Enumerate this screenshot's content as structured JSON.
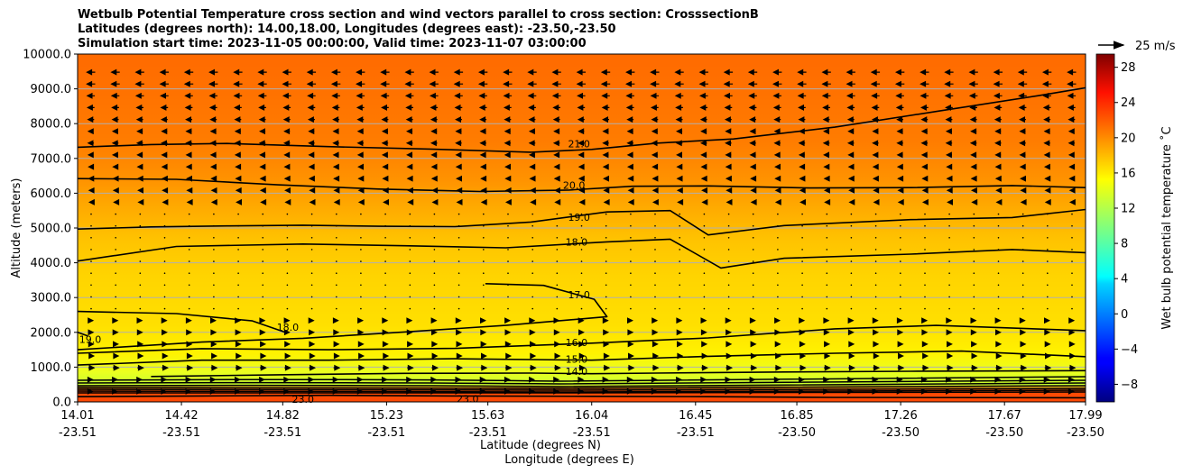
{
  "chart_data": {
    "type": "heatmap",
    "title_lines": [
      "Wetbulb Potential Temperature cross section and wind vectors parallel to cross section: CrosssectionB",
      "Latitudes (degrees north): 14.00,18.00, Longitudes (degrees east): -23.50,-23.50",
      "Simulation start time: 2023-11-05 00:00:00, Valid time: 2023-11-07 03:00:00"
    ],
    "ylabel": "Altitude (meters)",
    "xlabel": "Latitude (degrees N)",
    "xlabel2": "Longitude (degrees E)",
    "ylim": [
      0,
      10000
    ],
    "yticks": [
      "0.0",
      "1000.0",
      "2000.0",
      "3000.0",
      "4000.0",
      "5000.0",
      "6000.0",
      "7000.0",
      "8000.0",
      "9000.0",
      "10000.0"
    ],
    "xlim": [
      14.01,
      17.99
    ],
    "xticks": [
      {
        "lat": "14.01",
        "lon": "-23.51"
      },
      {
        "lat": "14.42",
        "lon": "-23.51"
      },
      {
        "lat": "14.82",
        "lon": "-23.51"
      },
      {
        "lat": "15.23",
        "lon": "-23.51"
      },
      {
        "lat": "15.63",
        "lon": "-23.51"
      },
      {
        "lat": "16.04",
        "lon": "-23.51"
      },
      {
        "lat": "16.45",
        "lon": "-23.51"
      },
      {
        "lat": "16.85",
        "lon": "-23.50"
      },
      {
        "lat": "17.26",
        "lon": "-23.50"
      },
      {
        "lat": "17.67",
        "lon": "-23.50"
      },
      {
        "lat": "17.99",
        "lon": "-23.50"
      }
    ],
    "grid": "horizontal",
    "colorbar": {
      "label": "Wet bulb potential temperature $^\\circ$C",
      "label_text": "Wet bulb potential temperature ˚C",
      "range": [
        -10,
        29.5
      ],
      "ticks": [
        "28",
        "24",
        "20",
        "16",
        "12",
        "8",
        "4",
        "0",
        "−4",
        "−8"
      ],
      "tick_values": [
        28,
        24,
        20,
        16,
        12,
        8,
        4,
        0,
        -4,
        -8
      ],
      "colormap": "jet"
    },
    "quiver_key": "25 m/s",
    "contours": [
      {
        "level": "21.0",
        "points": [
          [
            14.01,
            7320
          ],
          [
            14.3,
            7400
          ],
          [
            14.6,
            7430
          ],
          [
            15.0,
            7340
          ],
          [
            15.4,
            7270
          ],
          [
            15.8,
            7180
          ],
          [
            16.04,
            7260
          ],
          [
            16.3,
            7440
          ],
          [
            16.6,
            7560
          ],
          [
            17.0,
            7900
          ],
          [
            17.4,
            8350
          ],
          [
            17.8,
            8800
          ],
          [
            17.99,
            9030
          ]
        ],
        "labels": [
          [
            15.99,
            7400
          ]
        ]
      },
      {
        "level": "20.0",
        "points": [
          [
            14.01,
            6420
          ],
          [
            14.4,
            6400
          ],
          [
            14.8,
            6240
          ],
          [
            15.2,
            6120
          ],
          [
            15.6,
            6050
          ],
          [
            15.95,
            6090
          ],
          [
            16.2,
            6200
          ],
          [
            16.5,
            6210
          ],
          [
            16.9,
            6150
          ],
          [
            17.3,
            6160
          ],
          [
            17.7,
            6220
          ],
          [
            17.99,
            6160
          ]
        ],
        "labels": [
          [
            15.97,
            6200
          ]
        ]
      },
      {
        "level": "19.0",
        "points": [
          [
            14.01,
            4970
          ],
          [
            14.3,
            5030
          ],
          [
            14.6,
            5060
          ],
          [
            14.9,
            5080
          ],
          [
            15.2,
            5050
          ],
          [
            15.5,
            5040
          ],
          [
            15.8,
            5170
          ],
          [
            16.1,
            5460
          ],
          [
            16.35,
            5500
          ],
          [
            16.5,
            4800
          ],
          [
            16.8,
            5070
          ],
          [
            17.3,
            5240
          ],
          [
            17.7,
            5300
          ],
          [
            17.99,
            5530
          ]
        ],
        "labels": [
          [
            15.99,
            5290
          ]
        ]
      },
      {
        "level": "18.0",
        "points": [
          [
            14.01,
            4050
          ],
          [
            14.4,
            4470
          ],
          [
            14.9,
            4540
          ],
          [
            15.3,
            4490
          ],
          [
            15.7,
            4430
          ],
          [
            16.1,
            4600
          ],
          [
            16.35,
            4680
          ],
          [
            16.55,
            3850
          ],
          [
            16.8,
            4130
          ],
          [
            17.3,
            4250
          ],
          [
            17.7,
            4380
          ],
          [
            17.99,
            4290
          ]
        ],
        "labels": [
          [
            15.98,
            4570
          ]
        ]
      },
      {
        "level": "18.0 ",
        "points": [
          [
            14.01,
            2600
          ],
          [
            14.4,
            2540
          ],
          [
            14.7,
            2330
          ],
          [
            14.83,
            2000
          ]
        ],
        "labels": [
          [
            14.84,
            2130
          ]
        ]
      },
      {
        "level": "17.0",
        "points": [
          [
            15.62,
            3400
          ],
          [
            15.85,
            3350
          ],
          [
            16.05,
            2950
          ],
          [
            16.1,
            2450
          ],
          [
            15.7,
            2200
          ],
          [
            15.3,
            2010
          ],
          [
            14.9,
            1830
          ],
          [
            14.5,
            1720
          ],
          [
            14.01,
            1500
          ]
        ],
        "labels": [
          [
            15.99,
            3060
          ]
        ]
      },
      {
        "level": "16.0",
        "points": [
          [
            14.01,
            1400
          ],
          [
            14.5,
            1530
          ],
          [
            15.0,
            1500
          ],
          [
            15.5,
            1540
          ],
          [
            16.04,
            1690
          ],
          [
            16.5,
            1840
          ],
          [
            17.0,
            2100
          ],
          [
            17.4,
            2200
          ],
          [
            17.99,
            2050
          ]
        ],
        "labels": [
          [
            15.98,
            1690
          ]
        ]
      },
      {
        "level": "15.0",
        "points": [
          [
            14.01,
            1060
          ],
          [
            14.5,
            1200
          ],
          [
            15.0,
            1200
          ],
          [
            15.5,
            1240
          ],
          [
            16.04,
            1200
          ],
          [
            16.5,
            1310
          ],
          [
            17.0,
            1400
          ],
          [
            17.5,
            1460
          ],
          [
            17.99,
            1300
          ]
        ],
        "labels": [
          [
            15.98,
            1200
          ]
        ]
      },
      {
        "level": "14.0",
        "points": [
          [
            14.3,
            730
          ],
          [
            14.8,
            780
          ],
          [
            15.3,
            820
          ],
          [
            15.8,
            830
          ],
          [
            16.04,
            810
          ],
          [
            16.3,
            830
          ],
          [
            16.8,
            860
          ],
          [
            17.3,
            880
          ],
          [
            17.99,
            900
          ]
        ],
        "labels": [
          [
            15.98,
            850
          ]
        ]
      },
      {
        "level": "23.0",
        "points": [
          [
            14.01,
            150
          ],
          [
            14.5,
            170
          ],
          [
            15.0,
            190
          ],
          [
            15.5,
            170
          ],
          [
            16.04,
            160
          ],
          [
            16.5,
            150
          ],
          [
            17.0,
            130
          ],
          [
            17.99,
            120
          ]
        ],
        "labels": [
          [
            14.9,
            50
          ],
          [
            15.55,
            60
          ]
        ]
      },
      {
        "level": "19.0",
        "points": [
          [
            14.01,
            2000
          ],
          [
            14.05,
            1900
          ]
        ],
        "labels": [
          [
            14.06,
            1780
          ]
        ]
      }
    ]
  }
}
